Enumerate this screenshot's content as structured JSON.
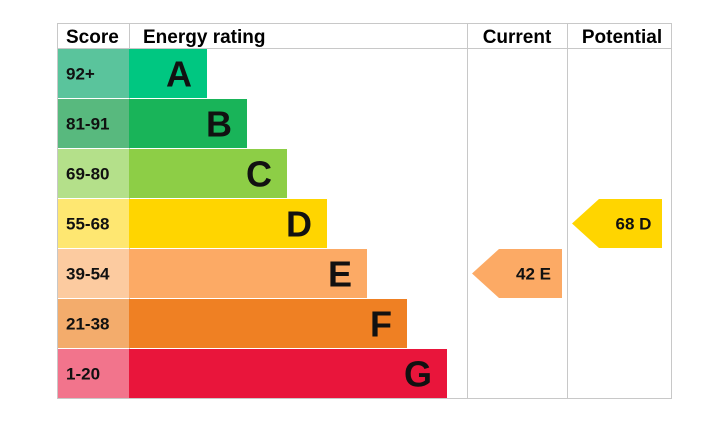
{
  "chart_data": {
    "type": "table",
    "headers": {
      "score": "Score",
      "energy_rating": "Energy rating",
      "current": "Current",
      "potential": "Potential"
    },
    "bands": [
      {
        "score": "92+",
        "letter": "A",
        "bar_color": "#00c781",
        "score_bg": "#5ac49c"
      },
      {
        "score": "81-91",
        "letter": "B",
        "bar_color": "#19b459",
        "score_bg": "#58b97e"
      },
      {
        "score": "69-80",
        "letter": "C",
        "bar_color": "#8dce46",
        "score_bg": "#b4e08a"
      },
      {
        "score": "55-68",
        "letter": "D",
        "bar_color": "#ffd500",
        "score_bg": "#fee771"
      },
      {
        "score": "39-54",
        "letter": "E",
        "bar_color": "#fcaa65",
        "score_bg": "#fccba0"
      },
      {
        "score": "21-38",
        "letter": "F",
        "bar_color": "#ef8023",
        "score_bg": "#f3ac6c"
      },
      {
        "score": "1-20",
        "letter": "G",
        "bar_color": "#e9153b",
        "score_bg": "#f2748c"
      }
    ],
    "current": {
      "value": 42,
      "letter": "E",
      "label": "42 E",
      "color": "#fcaa65"
    },
    "potential": {
      "value": 68,
      "letter": "D",
      "label": "68 D",
      "color": "#ffd500"
    },
    "grid_color": "#c8c8c8"
  }
}
